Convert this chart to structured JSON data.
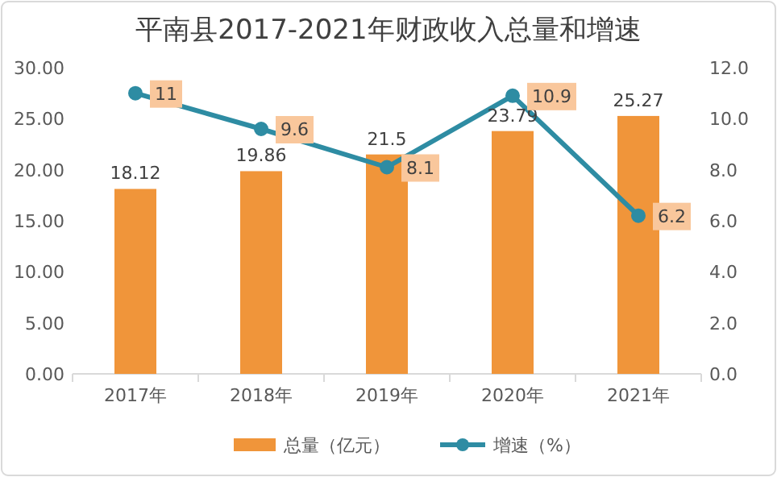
{
  "chart_data": {
    "type": "bar",
    "title": "平南县2017-2021年财政收入总量和增速",
    "categories": [
      "2017年",
      "2018年",
      "2019年",
      "2020年",
      "2021年"
    ],
    "series": [
      {
        "name": "总量（亿元）",
        "color": "#f0953a",
        "values": [
          18.12,
          19.86,
          21.5,
          23.79,
          25.27
        ]
      },
      {
        "name": "增速（%）",
        "type": "line",
        "axis": "y2",
        "color": "#2e8ca3",
        "values": [
          11,
          9.6,
          8.1,
          10.9,
          6.2
        ]
      }
    ],
    "ylim": [
      0,
      30
    ],
    "yticks": [
      {
        "value": 0,
        "label": "0.00"
      },
      {
        "value": 5,
        "label": "5.00"
      },
      {
        "value": 10,
        "label": "10.00"
      },
      {
        "value": 15,
        "label": "15.00"
      },
      {
        "value": 20,
        "label": "20.00"
      },
      {
        "value": 25,
        "label": "25.00"
      },
      {
        "value": 30,
        "label": "30.00"
      }
    ],
    "y2lim": [
      0,
      12
    ],
    "y2ticks": [
      {
        "value": 0,
        "label": "0.0"
      },
      {
        "value": 2,
        "label": "2.0"
      },
      {
        "value": 4,
        "label": "4.0"
      },
      {
        "value": 6,
        "label": "6.0"
      },
      {
        "value": 8,
        "label": "8.0"
      },
      {
        "value": 10,
        "label": "10.0"
      },
      {
        "value": 12,
        "label": "12.0"
      }
    ],
    "data_labels": true,
    "marker": "circle",
    "legend": "bottom",
    "grid": false
  }
}
